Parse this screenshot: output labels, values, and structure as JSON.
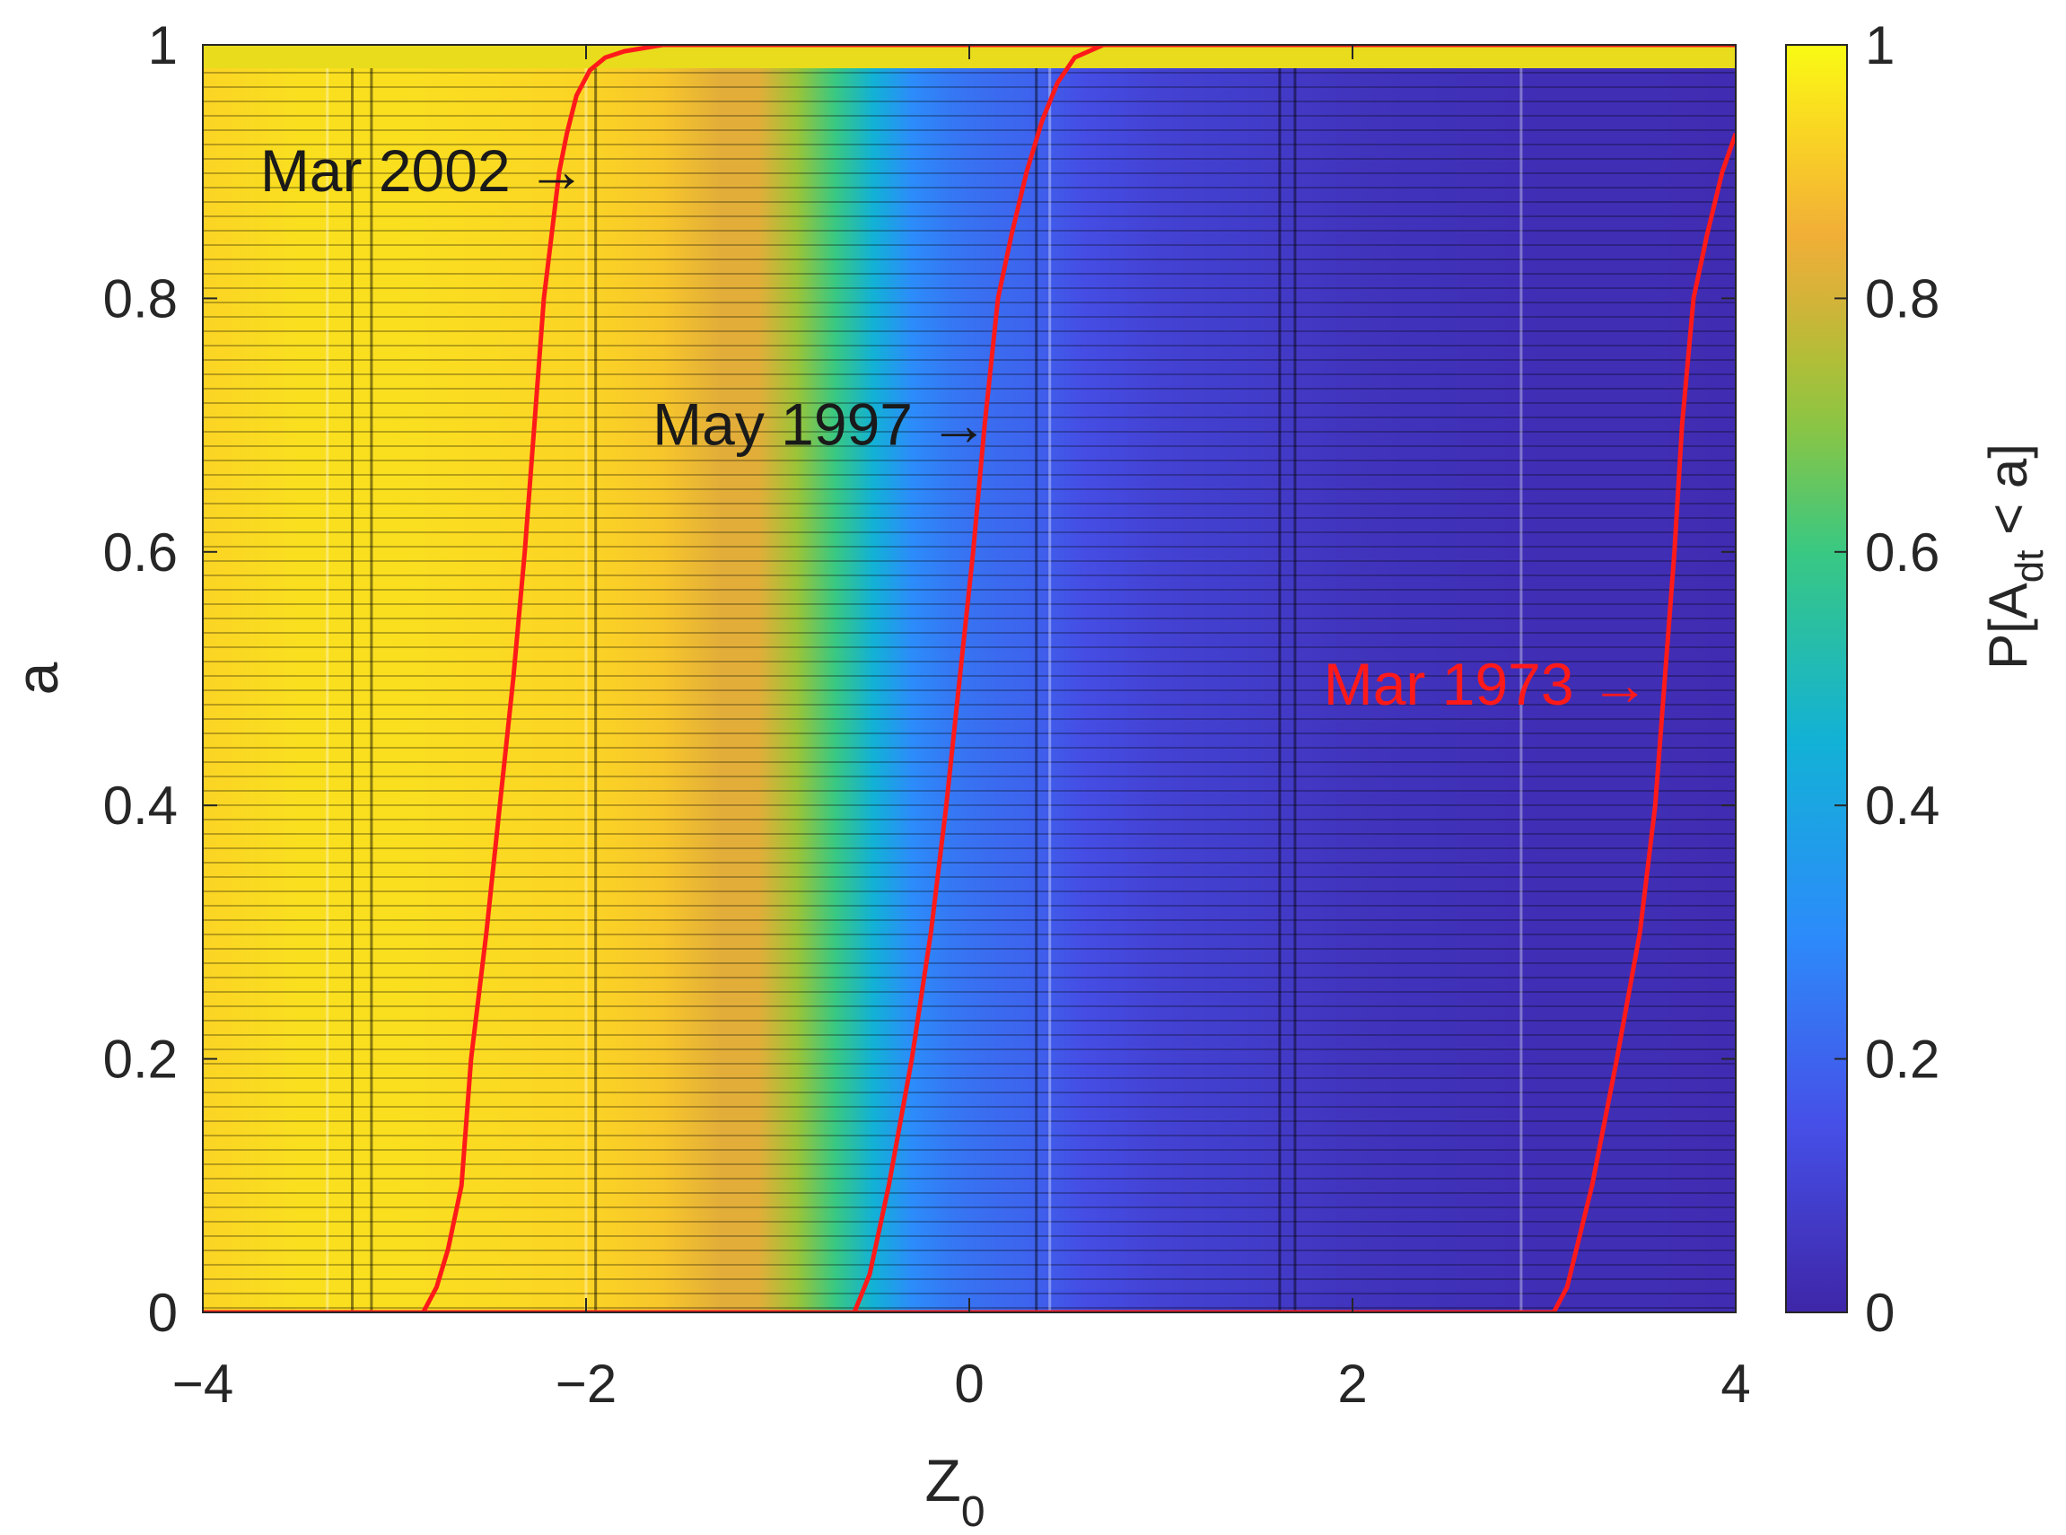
{
  "chart_data": {
    "type": "heatmap",
    "title": "",
    "xlabel": "Z",
    "xlabel_sub": "0",
    "ylabel": "a",
    "xlim": [
      -4,
      4
    ],
    "ylim": [
      0,
      1
    ],
    "xticks": [
      -4,
      -2,
      0,
      2,
      4
    ],
    "xtick_labels": [
      "−4",
      "−2",
      "0",
      "2",
      "4"
    ],
    "yticks": [
      0,
      0.2,
      0.4,
      0.6,
      0.8,
      1
    ],
    "ytick_labels": [
      "0",
      "0.2",
      "0.4",
      "0.6",
      "0.8",
      "1"
    ],
    "colormap": "parula",
    "colorbar": {
      "label_main": "P[A",
      "label_sub": "dt",
      "label_rest": " < a]",
      "ticks": [
        0,
        0.2,
        0.4,
        0.6,
        0.8,
        1
      ],
      "tick_labels": [
        "0",
        "0.2",
        "0.4",
        "0.6",
        "0.8",
        "1"
      ],
      "range": [
        0,
        1
      ]
    },
    "heatmap_profile": {
      "description_free": true,
      "z0": [
        -4.0,
        -3.5,
        -3.0,
        -2.5,
        -2.0,
        -1.6,
        -1.3,
        -1.1,
        -0.9,
        -0.7,
        -0.5,
        -0.3,
        -0.1,
        0.1,
        0.3,
        0.6,
        1.0,
        1.5,
        2.0,
        2.5,
        3.0,
        3.5,
        4.0
      ],
      "p": [
        0.93,
        0.95,
        0.95,
        0.94,
        0.93,
        0.9,
        0.82,
        0.82,
        0.72,
        0.6,
        0.45,
        0.3,
        0.25,
        0.22,
        0.2,
        0.14,
        0.1,
        0.08,
        0.05,
        0.04,
        0.03,
        0.03,
        0.02
      ]
    },
    "series": [
      {
        "name": "Mar 2002",
        "color": "#ff1a1a",
        "x": [
          -2.85,
          -2.78,
          -2.72,
          -2.65,
          -2.6,
          -2.52,
          -2.45,
          -2.38,
          -2.32,
          -2.27,
          -2.22,
          -2.18,
          -2.14,
          -2.1,
          -2.05,
          -1.98,
          -1.9,
          -1.8,
          -1.6,
          -1.4,
          4.0
        ],
        "y": [
          0.0,
          0.02,
          0.05,
          0.1,
          0.2,
          0.3,
          0.4,
          0.5,
          0.6,
          0.7,
          0.8,
          0.85,
          0.9,
          0.93,
          0.96,
          0.98,
          0.99,
          0.995,
          1.0,
          1.0,
          1.0
        ]
      },
      {
        "name": "May 1997",
        "color": "#ff1a1a",
        "x": [
          -0.6,
          -0.52,
          -0.42,
          -0.3,
          -0.2,
          -0.12,
          -0.05,
          0.02,
          0.08,
          0.15,
          0.22,
          0.3,
          0.38,
          0.46,
          0.55,
          0.7,
          0.9,
          4.0
        ],
        "y": [
          0.0,
          0.03,
          0.1,
          0.2,
          0.3,
          0.4,
          0.5,
          0.6,
          0.7,
          0.8,
          0.85,
          0.9,
          0.94,
          0.97,
          0.99,
          1.0,
          1.0,
          1.0
        ]
      },
      {
        "name": "Mar 1973",
        "color": "#ff1a1a",
        "x": [
          -4.0,
          3.05,
          3.12,
          3.25,
          3.38,
          3.5,
          3.58,
          3.63,
          3.68,
          3.72,
          3.78,
          3.85,
          3.93,
          4.0
        ],
        "y": [
          0.0,
          0.0,
          0.02,
          0.1,
          0.2,
          0.3,
          0.4,
          0.5,
          0.6,
          0.7,
          0.8,
          0.85,
          0.9,
          0.93
        ]
      }
    ],
    "annotations": [
      {
        "text": "Mar 2002 →",
        "x": -2.0,
        "y": 0.9,
        "color": "#1a1a1a"
      },
      {
        "text": "May 1997 →",
        "x": 0.1,
        "y": 0.7,
        "color": "#1a1a1a"
      },
      {
        "text": "Mar 1973 →",
        "x": 3.55,
        "y": 0.495,
        "color": "#ff1a1a"
      }
    ]
  }
}
